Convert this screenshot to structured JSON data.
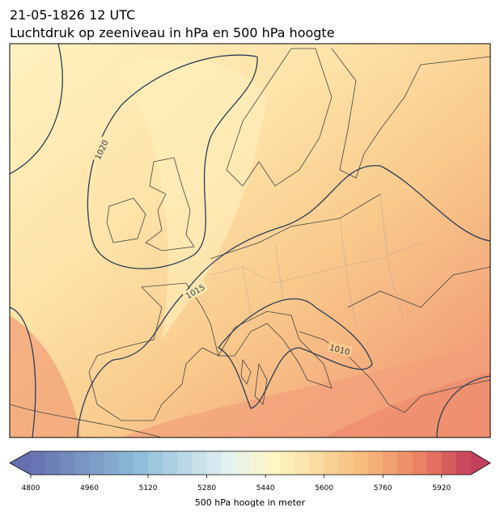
{
  "title": [
    "21-05-1826 12 UTC",
    "Luchtdruk op zeeniveau in hPa en 500 hPa hoogte"
  ],
  "contour_labels": [
    "1020",
    "1015",
    "1010"
  ],
  "colorbar": {
    "label": "500 hPa hoogte in meter",
    "range": [
      4800,
      6000
    ],
    "ticks": [
      4800,
      4960,
      5120,
      5280,
      5440,
      5600,
      5760,
      5920
    ]
  }
}
